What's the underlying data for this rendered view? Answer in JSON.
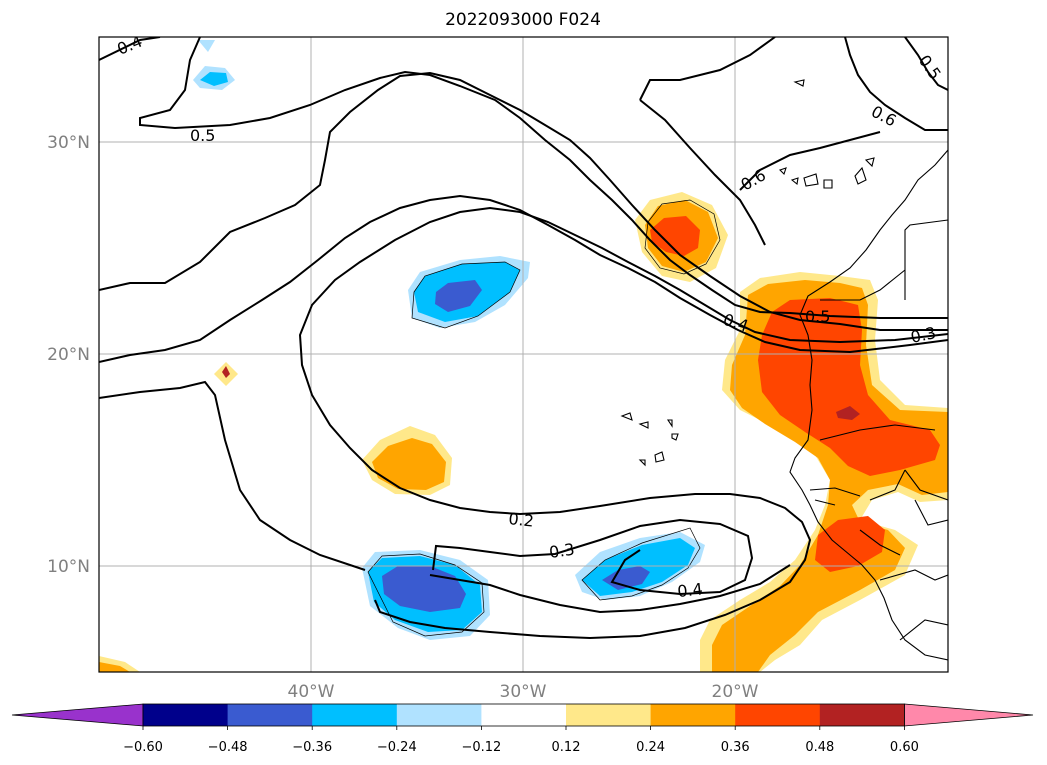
{
  "title": "2022093000 F024",
  "latitude_labels": [
    "30°N",
    "20°N",
    "10°N"
  ],
  "longitude_labels": [
    "40°W",
    "30°W",
    "20°W"
  ],
  "contour_labels": [
    "0.4",
    "0.5",
    "0.6",
    "0.5",
    "0.6",
    "0.4",
    "0.5",
    "0.3",
    "0.2",
    "0.3",
    "0.4"
  ],
  "colorbar": {
    "ticks": [
      "−0.60",
      "−0.48",
      "−0.36",
      "−0.24",
      "−0.12",
      "0.12",
      "0.24",
      "0.36",
      "0.48",
      "0.60"
    ],
    "colors": [
      "#9932cc",
      "#00008b",
      "#3a5bd0",
      "#00bfff",
      "#b0e2ff",
      "#ffffff",
      "#ffe88a",
      "#ffa500",
      "#ff4500",
      "#b22222",
      "#ff88aa"
    ]
  }
}
